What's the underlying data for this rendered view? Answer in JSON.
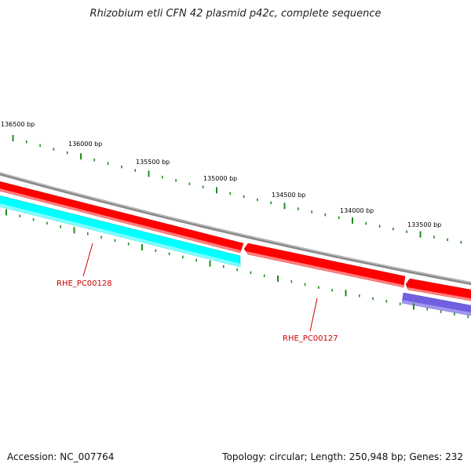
{
  "title": "Rhizobium etli CFN 42 plasmid p42c, complete sequence",
  "footer": {
    "accession": "Accession: NC_007764",
    "info": "Topology: circular; Length: 250,948 bp; Genes: 232"
  },
  "colors": {
    "backbone": "#7f7f7f",
    "forward_gene": "#ff0000",
    "cds_red": "#ff0000",
    "cds_cyan": "#00ffff",
    "cds_blue": "#7060e0",
    "tick": "#228B22",
    "gene_label": "#cc0000"
  },
  "ticks": [
    {
      "label": "136500 bp"
    },
    {
      "label": "136000 bp"
    },
    {
      "label": "135500 bp"
    },
    {
      "label": "135000 bp"
    },
    {
      "label": "134500 bp"
    },
    {
      "label": "134000 bp"
    },
    {
      "label": "133500 bp"
    }
  ],
  "genes": [
    {
      "label": "RHE_PC00128"
    },
    {
      "label": "RHE_PC00127"
    }
  ]
}
